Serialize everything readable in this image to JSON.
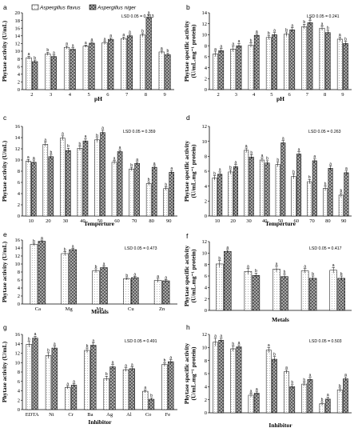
{
  "legend": {
    "series_a": "Aspergillus flavus",
    "series_b": "Aspergillus niger"
  },
  "colors": {
    "series_a": "#ffffff",
    "series_b": "#7f7f7f",
    "dots": "#9a9a9a",
    "axis": "#000000"
  },
  "chart_data": [
    {
      "panel": "a",
      "type": "bar",
      "lsd": "LSD 0.05 = 0.313",
      "xlabel": "pH",
      "ylabel": "Phytase activity (U/mL)",
      "ylim": [
        0,
        20
      ],
      "yticks": [
        "0",
        "2",
        "4",
        "6",
        "8",
        "10",
        "12",
        "14",
        "16",
        "18",
        "20"
      ],
      "categories": [
        "2",
        "3",
        "4",
        "5",
        "6",
        "7",
        "8",
        "9"
      ],
      "series": [
        {
          "name": "Aspergillus flavus",
          "values": [
            8.3,
            9.3,
            11.0,
            11.3,
            12.2,
            13.3,
            14.2,
            9.8
          ],
          "errors": [
            0.4,
            0.4,
            0.4,
            0.3,
            0.4,
            0.4,
            0.4,
            0.4
          ],
          "letters": [
            "a",
            "b",
            "a",
            "a",
            "a",
            "a",
            "b",
            "a"
          ]
        },
        {
          "name": "Aspergillus niger",
          "values": [
            7.3,
            8.6,
            10.5,
            12.1,
            13.1,
            14.0,
            18.8,
            9.1
          ],
          "errors": [
            0.4,
            0.4,
            0.4,
            0.4,
            0.4,
            0.4,
            0.6,
            0.4
          ],
          "letters": [
            "b",
            "a",
            "a",
            "a",
            "a",
            "a",
            "a",
            "b"
          ]
        }
      ]
    },
    {
      "panel": "b",
      "type": "bar",
      "lsd": "LSD 0.05 = 0.241",
      "xlabel": "pH",
      "ylabel": "Phytase specific activity (U/mL.mg⁻¹ protein)",
      "ylim": [
        0,
        14
      ],
      "yticks": [
        "0",
        "2",
        "4",
        "6",
        "8",
        "10",
        "12",
        "14"
      ],
      "categories": [
        "2",
        "3",
        "4",
        "5",
        "6",
        "7",
        "8",
        "9"
      ],
      "series": [
        {
          "name": "Aspergillus flavus",
          "values": [
            6.5,
            7.4,
            8.1,
            9.5,
            10.1,
            11.5,
            11.2,
            9.2
          ],
          "errors": [
            0.5,
            0.5,
            0.4,
            0.4,
            0.4,
            0.4,
            0.4,
            0.4
          ],
          "letters": [
            "a",
            "a",
            "b",
            "b",
            "b",
            "b",
            "a",
            "a"
          ]
        },
        {
          "name": "Aspergillus niger",
          "values": [
            7.1,
            8.0,
            9.9,
            10.0,
            10.9,
            12.2,
            10.4,
            8.4
          ],
          "errors": [
            0.4,
            0.4,
            0.3,
            0.4,
            0.4,
            0.4,
            0.4,
            0.4
          ],
          "letters": [
            "a",
            "a",
            "a",
            "a",
            "a",
            "a",
            "b",
            "b"
          ]
        }
      ]
    },
    {
      "panel": "c",
      "type": "bar",
      "lsd": "LSD 0.05 = 0.359",
      "xlabel": "Temperture",
      "ylabel": "Phytase activity (U/mL)",
      "ylim": [
        0,
        16
      ],
      "yticks": [
        "0",
        "2",
        "4",
        "6",
        "8",
        "10",
        "12",
        "14",
        "16"
      ],
      "categories": [
        "10",
        "20",
        "30",
        "40",
        "50",
        "60",
        "70",
        "80",
        "90"
      ],
      "series": [
        {
          "name": "Aspergillus flavus",
          "values": [
            9.8,
            12.8,
            13.9,
            12.1,
            13.6,
            9.6,
            8.4,
            5.8,
            4.9
          ],
          "errors": [
            0.3,
            0.4,
            0.4,
            0.4,
            0.4,
            0.3,
            0.3,
            0.3,
            0.3
          ],
          "letters": [
            "a",
            "a",
            "a",
            "b",
            "b",
            "a",
            "b",
            "b",
            "b"
          ]
        },
        {
          "name": "Aspergillus niger",
          "values": [
            9.6,
            10.6,
            11.7,
            13.4,
            14.9,
            11.5,
            9.4,
            8.7,
            7.8
          ],
          "errors": [
            0.4,
            0.4,
            0.4,
            0.4,
            0.4,
            0.3,
            0.3,
            0.3,
            0.3
          ],
          "letters": [
            "a",
            "b",
            "b",
            "a",
            "a",
            "a",
            "a",
            "a",
            "a"
          ]
        }
      ]
    },
    {
      "panel": "d",
      "type": "bar",
      "lsd": "LSD 0.05 = 0.263",
      "xlabel": "Temperture",
      "ylabel": "Phytase specific activity (U/mL.mg⁻¹ protein)",
      "ylim": [
        0,
        12
      ],
      "yticks": [
        "0",
        "2",
        "4",
        "6",
        "8",
        "10",
        "12"
      ],
      "categories": [
        "10",
        "20",
        "30",
        "40",
        "50",
        "60",
        "70",
        "80",
        "90"
      ],
      "series": [
        {
          "name": "Aspergillus flavus",
          "values": [
            5.1,
            5.9,
            8.8,
            7.5,
            6.9,
            5.3,
            4.6,
            3.7,
            2.8
          ],
          "errors": [
            0.3,
            0.3,
            0.3,
            0.3,
            0.3,
            0.3,
            0.3,
            0.3,
            0.3
          ],
          "letters": [
            "b",
            "b",
            "a",
            "a",
            "b",
            "b",
            "b",
            "b",
            "b"
          ]
        },
        {
          "name": "Aspergillus niger",
          "values": [
            5.6,
            6.6,
            7.9,
            7.1,
            9.8,
            8.3,
            7.4,
            6.4,
            5.8
          ],
          "errors": [
            0.3,
            0.3,
            0.3,
            0.3,
            0.3,
            0.3,
            0.3,
            0.3,
            0.3
          ],
          "letters": [
            "a",
            "a",
            "b",
            "b",
            "a",
            "a",
            "a",
            "a",
            "a"
          ]
        }
      ]
    },
    {
      "panel": "e",
      "type": "bar",
      "lsd": "LSD 0.05 = 0.473",
      "xlabel": "Metals",
      "ylabel": "Phytase activity (U/mL)",
      "ylim": [
        0,
        16
      ],
      "yticks": [
        "0",
        "2",
        "4",
        "6",
        "8",
        "10",
        "12",
        "14",
        "16"
      ],
      "categories": [
        "Ca",
        "Mg",
        "Mn",
        "Cu",
        "Zn"
      ],
      "series": [
        {
          "name": "Aspergillus flavus",
          "values": [
            14.9,
            12.6,
            8.3,
            6.3,
            5.9
          ],
          "errors": [
            0.3,
            0.5,
            0.5,
            0.3,
            0.5
          ],
          "letters": [
            "b",
            "b",
            "b",
            "b",
            "a"
          ]
        },
        {
          "name": "Aspergillus niger",
          "values": [
            15.7,
            13.6,
            9.1,
            6.6,
            5.8
          ],
          "errors": [
            0.3,
            0.3,
            0.4,
            0.3,
            0.3
          ],
          "letters": [
            "a",
            "a",
            "a",
            "a",
            "a"
          ]
        }
      ]
    },
    {
      "panel": "f",
      "type": "bar",
      "lsd": "LSD 0.05 = 0.417",
      "xlabel": "Metals",
      "ylabel": "Phytase specific activity (U/mL.mg⁻¹ protein)",
      "ylim": [
        0,
        12
      ],
      "yticks": [
        "0",
        "2",
        "4",
        "6",
        "8",
        "10",
        "12"
      ],
      "categories": [
        "",
        "",
        "",
        "",
        ""
      ],
      "series": [
        {
          "name": "Aspergillus flavus",
          "values": [
            8.1,
            6.8,
            7.2,
            6.9,
            7.0
          ],
          "errors": [
            0.6,
            0.5,
            0.5,
            0.4,
            0.5
          ],
          "letters": [
            "b",
            "a",
            "a",
            "a",
            "a"
          ]
        },
        {
          "name": "Aspergillus niger",
          "values": [
            10.3,
            6.1,
            5.9,
            5.6,
            5.6
          ],
          "errors": [
            0.3,
            0.4,
            0.4,
            0.4,
            0.4
          ],
          "letters": [
            "a",
            "b",
            "b",
            "b",
            "b"
          ]
        }
      ]
    },
    {
      "panel": "g",
      "type": "bar",
      "lsd": "LSD 0.05 = 0.491",
      "xlabel": "Inhibitor",
      "ylabel": "Phytase activity (U/mL)",
      "ylim": [
        0,
        16
      ],
      "yticks": [
        "0",
        "2",
        "4",
        "6",
        "8",
        "10",
        "12",
        "14",
        "16"
      ],
      "categories": [
        "EDTA",
        "Ni",
        "Cr",
        "Ba",
        "Ag",
        "Al",
        "Co",
        "Fe"
      ],
      "series": [
        {
          "name": "Aspergillus flavus",
          "values": [
            13.9,
            11.5,
            4.7,
            12.6,
            6.6,
            8.5,
            3.9,
            9.6
          ],
          "errors": [
            0.6,
            0.6,
            0.3,
            0.5,
            0.5,
            0.4,
            0.3,
            0.4
          ],
          "letters": [
            "b",
            "b",
            "a",
            "b",
            "b",
            "a",
            "a",
            "b"
          ]
        },
        {
          "name": "Aspergillus niger",
          "values": [
            15.2,
            13.1,
            5.2,
            13.7,
            9.1,
            8.7,
            2.2,
            10.2
          ],
          "errors": [
            0.4,
            0.4,
            0.3,
            0.5,
            0.5,
            0.4,
            0.3,
            0.4
          ],
          "letters": [
            "a",
            "a",
            "a",
            "a",
            "a",
            "a",
            "b",
            "a"
          ]
        }
      ]
    },
    {
      "panel": "h",
      "type": "bar",
      "lsd": "LSD 0.05 = 0.503",
      "xlabel": "Inhibitor",
      "ylabel": "Phytase specific activity (U/mL.mg⁻¹ protein)",
      "ylim": [
        0,
        12
      ],
      "yticks": [
        "0",
        "2",
        "4",
        "6",
        "8",
        "10",
        "12"
      ],
      "categories": [
        "",
        "",
        "",
        "",
        "",
        "",
        "",
        ""
      ],
      "series": [
        {
          "name": "Aspergillus flavus",
          "values": [
            10.8,
            9.8,
            2.7,
            9.6,
            6.3,
            4.4,
            1.4,
            3.5
          ],
          "errors": [
            0.6,
            0.4,
            0.3,
            0.4,
            0.3,
            0.3,
            0.3,
            0.3
          ],
          "letters": [
            "a",
            "b",
            "a",
            "a",
            "a",
            "b",
            "b",
            "b"
          ]
        },
        {
          "name": "Aspergillus niger",
          "values": [
            11.1,
            10.1,
            3.0,
            8.2,
            4.0,
            5.1,
            2.1,
            5.2
          ],
          "errors": [
            0.3,
            0.3,
            0.3,
            0.4,
            0.3,
            0.3,
            0.3,
            0.3
          ],
          "letters": [
            "a",
            "a",
            "a",
            "b",
            "b",
            "a",
            "a",
            "a"
          ]
        }
      ]
    }
  ]
}
